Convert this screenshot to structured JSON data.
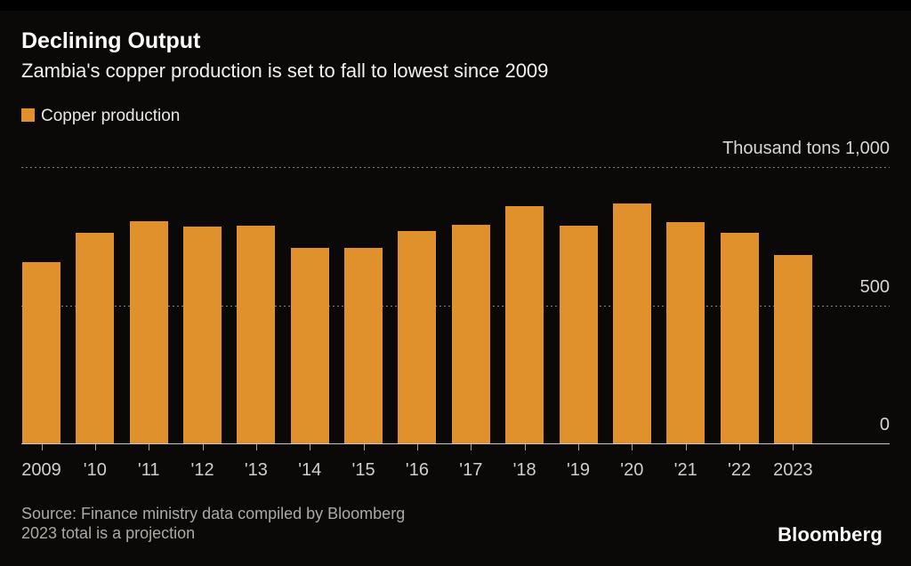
{
  "header": {
    "title": "Declining Output",
    "subtitle": "Zambia's copper production is set to fall to lowest since 2009"
  },
  "legend": {
    "label": "Copper production"
  },
  "footer": {
    "source_line1": "Source: Finance ministry data compiled by Bloomberg",
    "source_line2": "2023 total is a projection",
    "brand": "Bloomberg"
  },
  "colors": {
    "background": "#0a0908",
    "bar": "#e0912c",
    "title_text": "#ffffff",
    "axis_text": "#d0ceca",
    "gridline": "#85827d"
  },
  "chart_data": {
    "type": "bar",
    "title": "Declining Output",
    "subtitle": "Zambia's copper production is set to fall to lowest since 2009",
    "unit_label": "Thousand tons",
    "categories": [
      "2009",
      "'10",
      "'11",
      "'12",
      "'13",
      "'14",
      "'15",
      "'16",
      "'17",
      "'18",
      "'19",
      "'20",
      "'21",
      "'22",
      "2023"
    ],
    "series": [
      {
        "name": "Copper production",
        "values": [
          655,
          762,
          805,
          785,
          788,
          706,
          709,
          767,
          790,
          857,
          788,
          868,
          801,
          763,
          682
        ]
      }
    ],
    "y_ticks": [
      {
        "value": 1000,
        "label": "Thousand tons 1,000"
      },
      {
        "value": 500,
        "label": "500"
      },
      {
        "value": 0,
        "label": "0"
      }
    ],
    "ylim": [
      0,
      1000
    ],
    "grid": "horizontal-dotted",
    "legend_position": "top-left",
    "xlabel": "",
    "ylabel": "Thousand tons"
  }
}
